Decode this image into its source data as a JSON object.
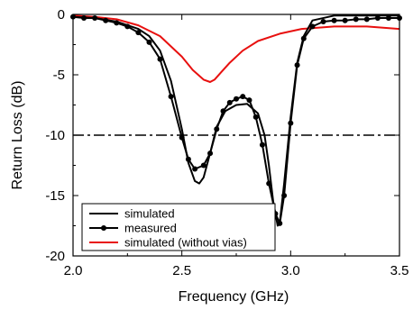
{
  "chart_data": {
    "type": "line",
    "title": "",
    "xlabel": "Frequency (GHz)",
    "ylabel": "Return Loss (dB)",
    "xlim": [
      2.0,
      3.5
    ],
    "ylim": [
      -20,
      0
    ],
    "x_ticks": [
      2.0,
      2.5,
      3.0,
      3.5
    ],
    "x_tick_labels": [
      "2.0",
      "2.5",
      "3.0",
      "3.5"
    ],
    "y_ticks": [
      0,
      -5,
      -10,
      -15,
      -20
    ],
    "y_tick_labels": [
      "0",
      "-5",
      "-10",
      "-15",
      "-20"
    ],
    "legend_position": "bottom-left",
    "reference_line": {
      "y": -10,
      "style": "dash-dot",
      "color": "#000000"
    },
    "series": [
      {
        "name": "simulated",
        "color": "#000000",
        "marker": "none",
        "x": [
          2.0,
          2.1,
          2.2,
          2.3,
          2.35,
          2.4,
          2.45,
          2.5,
          2.53,
          2.56,
          2.58,
          2.6,
          2.63,
          2.66,
          2.7,
          2.75,
          2.8,
          2.85,
          2.88,
          2.9,
          2.92,
          2.94,
          2.95,
          2.97,
          3.0,
          3.03,
          3.06,
          3.1,
          3.2,
          3.3,
          3.5
        ],
        "y": [
          -0.2,
          -0.3,
          -0.6,
          -1.2,
          -1.8,
          -3.0,
          -5.5,
          -9.5,
          -12.3,
          -13.8,
          -14.0,
          -13.5,
          -11.5,
          -9.3,
          -8.0,
          -7.5,
          -7.4,
          -8.2,
          -10.0,
          -12.5,
          -15.5,
          -17.5,
          -17.2,
          -14.0,
          -8.5,
          -4.0,
          -1.8,
          -0.5,
          -0.1,
          -0.1,
          -0.1
        ]
      },
      {
        "name": "measured",
        "color": "#000000",
        "marker": "circle",
        "x": [
          2.0,
          2.05,
          2.1,
          2.15,
          2.2,
          2.25,
          2.3,
          2.35,
          2.4,
          2.45,
          2.5,
          2.53,
          2.56,
          2.6,
          2.63,
          2.66,
          2.69,
          2.72,
          2.75,
          2.78,
          2.81,
          2.84,
          2.87,
          2.9,
          2.93,
          2.95,
          2.97,
          3.0,
          3.03,
          3.06,
          3.1,
          3.15,
          3.2,
          3.25,
          3.3,
          3.35,
          3.4,
          3.45,
          3.5
        ],
        "y": [
          -0.2,
          -0.3,
          -0.3,
          -0.5,
          -0.7,
          -1.0,
          -1.5,
          -2.3,
          -3.7,
          -6.8,
          -10.2,
          -12.0,
          -12.8,
          -12.5,
          -11.5,
          -9.5,
          -8.0,
          -7.3,
          -7.0,
          -6.8,
          -7.1,
          -8.5,
          -10.8,
          -14.0,
          -16.5,
          -17.3,
          -15.0,
          -9.0,
          -4.2,
          -2.0,
          -1.0,
          -0.6,
          -0.5,
          -0.5,
          -0.4,
          -0.4,
          -0.3,
          -0.3,
          -0.3
        ]
      },
      {
        "name": "simulated (without vias)",
        "color": "#e8100f",
        "marker": "none",
        "x": [
          2.0,
          2.1,
          2.2,
          2.3,
          2.4,
          2.5,
          2.55,
          2.6,
          2.63,
          2.65,
          2.68,
          2.72,
          2.78,
          2.85,
          2.95,
          3.05,
          3.2,
          3.35,
          3.5
        ],
        "y": [
          -0.1,
          -0.2,
          -0.4,
          -0.9,
          -1.8,
          -3.5,
          -4.6,
          -5.4,
          -5.6,
          -5.4,
          -4.8,
          -4.0,
          -3.0,
          -2.2,
          -1.6,
          -1.2,
          -1.0,
          -1.0,
          -1.2
        ]
      }
    ]
  }
}
